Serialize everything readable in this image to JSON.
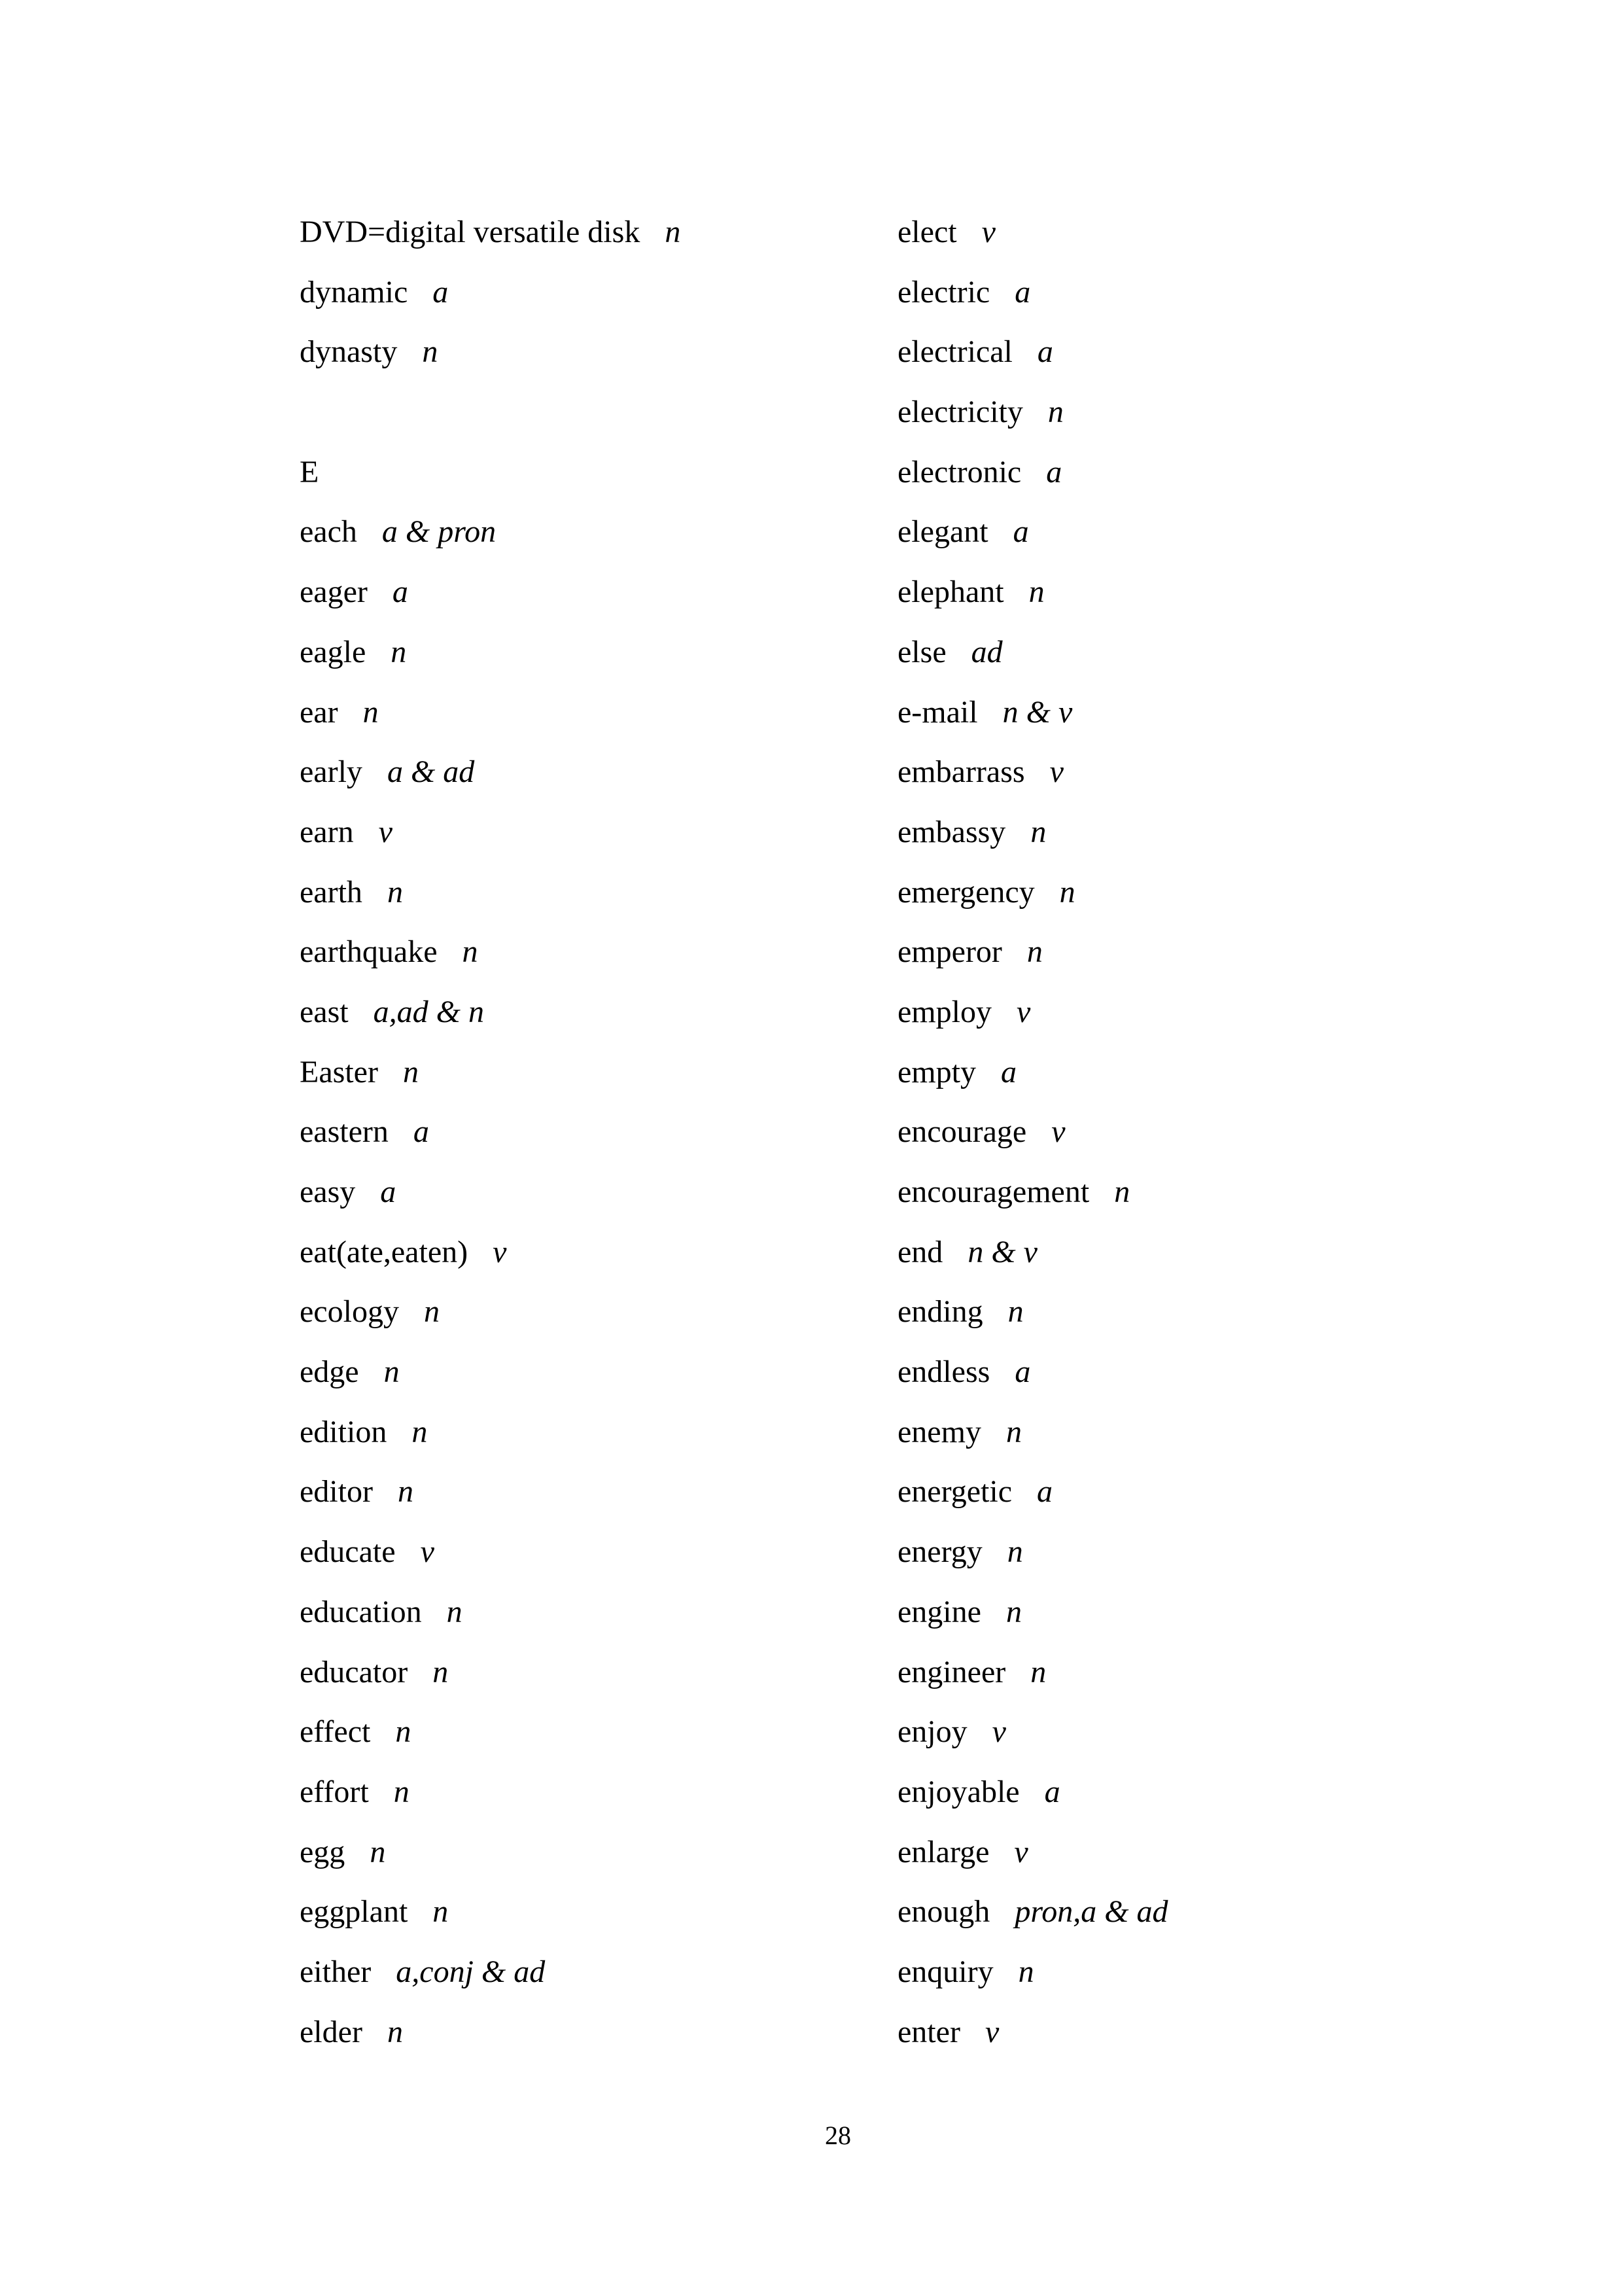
{
  "left_column": [
    {
      "word": "DVD=digital versatile disk",
      "pos": "n"
    },
    {
      "word": "dynamic",
      "pos": "a"
    },
    {
      "word": "dynasty",
      "pos": "n"
    },
    {
      "word": "",
      "pos": ""
    },
    {
      "word": "E",
      "pos": ""
    },
    {
      "word": "each",
      "pos": "a & pron"
    },
    {
      "word": "eager",
      "pos": "a"
    },
    {
      "word": "eagle",
      "pos": "n"
    },
    {
      "word": "ear",
      "pos": "n"
    },
    {
      "word": "early",
      "pos": "a & ad"
    },
    {
      "word": "earn",
      "pos": "v"
    },
    {
      "word": "earth",
      "pos": "n"
    },
    {
      "word": "earthquake",
      "pos": "n"
    },
    {
      "word": "east",
      "pos": "a,ad & n"
    },
    {
      "word": "Easter",
      "pos": "n"
    },
    {
      "word": "eastern",
      "pos": "a"
    },
    {
      "word": "easy",
      "pos": "a"
    },
    {
      "word": "eat(ate,eaten)",
      "pos": "v"
    },
    {
      "word": "ecology",
      "pos": "n"
    },
    {
      "word": "edge",
      "pos": "n"
    },
    {
      "word": "edition",
      "pos": "n"
    },
    {
      "word": "editor",
      "pos": "n"
    },
    {
      "word": "educate",
      "pos": "v"
    },
    {
      "word": "education",
      "pos": "n"
    },
    {
      "word": "educator",
      "pos": "n"
    },
    {
      "word": "effect",
      "pos": "n"
    },
    {
      "word": "effort",
      "pos": "n"
    },
    {
      "word": "egg",
      "pos": "n"
    },
    {
      "word": "eggplant",
      "pos": "n"
    },
    {
      "word": "either",
      "pos": "a,conj & ad"
    },
    {
      "word": "elder",
      "pos": "n"
    }
  ],
  "right_column": [
    {
      "word": "elect",
      "pos": "v"
    },
    {
      "word": "electric",
      "pos": "a"
    },
    {
      "word": "electrical",
      "pos": "a"
    },
    {
      "word": "electricity",
      "pos": "n"
    },
    {
      "word": "electronic",
      "pos": "a"
    },
    {
      "word": "elegant",
      "pos": "a"
    },
    {
      "word": "elephant",
      "pos": "n"
    },
    {
      "word": "else",
      "pos": "ad"
    },
    {
      "word": "e-mail",
      "pos": "n & v"
    },
    {
      "word": "embarrass",
      "pos": "v"
    },
    {
      "word": "embassy",
      "pos": "n"
    },
    {
      "word": "emergency",
      "pos": "n"
    },
    {
      "word": "emperor",
      "pos": "n"
    },
    {
      "word": "employ",
      "pos": "v"
    },
    {
      "word": "empty",
      "pos": "a"
    },
    {
      "word": "encourage",
      "pos": "v"
    },
    {
      "word": "encouragement",
      "pos": "n"
    },
    {
      "word": "end",
      "pos": "n & v"
    },
    {
      "word": "ending",
      "pos": "n"
    },
    {
      "word": "endless",
      "pos": "a"
    },
    {
      "word": "enemy",
      "pos": "n"
    },
    {
      "word": "energetic",
      "pos": "a"
    },
    {
      "word": "energy",
      "pos": "n"
    },
    {
      "word": "engine",
      "pos": "n"
    },
    {
      "word": "engineer",
      "pos": "n"
    },
    {
      "word": "enjoy",
      "pos": "v"
    },
    {
      "word": "enjoyable",
      "pos": "a"
    },
    {
      "word": "enlarge",
      "pos": "v"
    },
    {
      "word": "enough",
      "pos": "pron,a & ad"
    },
    {
      "word": "enquiry",
      "pos": "n"
    },
    {
      "word": "enter",
      "pos": "v"
    }
  ],
  "page_number": "28"
}
